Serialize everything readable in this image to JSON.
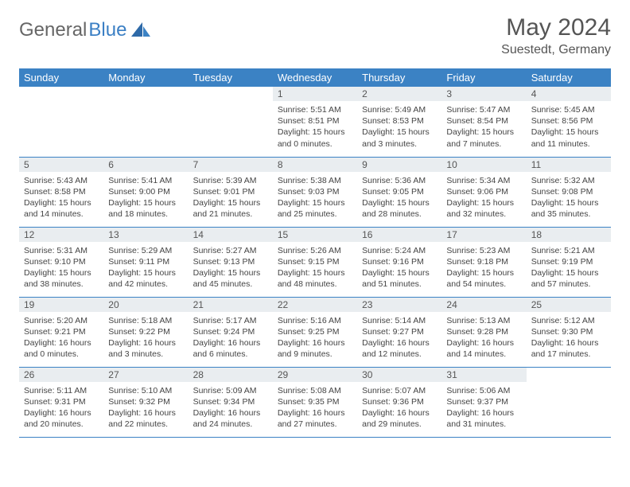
{
  "brand": {
    "part1": "General",
    "part2": "Blue"
  },
  "title": "May 2024",
  "location": "Suestedt, Germany",
  "colors": {
    "header_bg": "#3b82c4",
    "header_text": "#ffffff",
    "daynum_bg": "#e9edf0",
    "border": "#3b82c4",
    "text": "#444444",
    "logo_gray": "#666666",
    "logo_blue": "#3b7fc4",
    "page_bg": "#ffffff"
  },
  "weekdays": [
    "Sunday",
    "Monday",
    "Tuesday",
    "Wednesday",
    "Thursday",
    "Friday",
    "Saturday"
  ],
  "weeks": [
    [
      null,
      null,
      null,
      {
        "n": "1",
        "sr": "5:51 AM",
        "ss": "8:51 PM",
        "dl": "15 hours and 0 minutes."
      },
      {
        "n": "2",
        "sr": "5:49 AM",
        "ss": "8:53 PM",
        "dl": "15 hours and 3 minutes."
      },
      {
        "n": "3",
        "sr": "5:47 AM",
        "ss": "8:54 PM",
        "dl": "15 hours and 7 minutes."
      },
      {
        "n": "4",
        "sr": "5:45 AM",
        "ss": "8:56 PM",
        "dl": "15 hours and 11 minutes."
      }
    ],
    [
      {
        "n": "5",
        "sr": "5:43 AM",
        "ss": "8:58 PM",
        "dl": "15 hours and 14 minutes."
      },
      {
        "n": "6",
        "sr": "5:41 AM",
        "ss": "9:00 PM",
        "dl": "15 hours and 18 minutes."
      },
      {
        "n": "7",
        "sr": "5:39 AM",
        "ss": "9:01 PM",
        "dl": "15 hours and 21 minutes."
      },
      {
        "n": "8",
        "sr": "5:38 AM",
        "ss": "9:03 PM",
        "dl": "15 hours and 25 minutes."
      },
      {
        "n": "9",
        "sr": "5:36 AM",
        "ss": "9:05 PM",
        "dl": "15 hours and 28 minutes."
      },
      {
        "n": "10",
        "sr": "5:34 AM",
        "ss": "9:06 PM",
        "dl": "15 hours and 32 minutes."
      },
      {
        "n": "11",
        "sr": "5:32 AM",
        "ss": "9:08 PM",
        "dl": "15 hours and 35 minutes."
      }
    ],
    [
      {
        "n": "12",
        "sr": "5:31 AM",
        "ss": "9:10 PM",
        "dl": "15 hours and 38 minutes."
      },
      {
        "n": "13",
        "sr": "5:29 AM",
        "ss": "9:11 PM",
        "dl": "15 hours and 42 minutes."
      },
      {
        "n": "14",
        "sr": "5:27 AM",
        "ss": "9:13 PM",
        "dl": "15 hours and 45 minutes."
      },
      {
        "n": "15",
        "sr": "5:26 AM",
        "ss": "9:15 PM",
        "dl": "15 hours and 48 minutes."
      },
      {
        "n": "16",
        "sr": "5:24 AM",
        "ss": "9:16 PM",
        "dl": "15 hours and 51 minutes."
      },
      {
        "n": "17",
        "sr": "5:23 AM",
        "ss": "9:18 PM",
        "dl": "15 hours and 54 minutes."
      },
      {
        "n": "18",
        "sr": "5:21 AM",
        "ss": "9:19 PM",
        "dl": "15 hours and 57 minutes."
      }
    ],
    [
      {
        "n": "19",
        "sr": "5:20 AM",
        "ss": "9:21 PM",
        "dl": "16 hours and 0 minutes."
      },
      {
        "n": "20",
        "sr": "5:18 AM",
        "ss": "9:22 PM",
        "dl": "16 hours and 3 minutes."
      },
      {
        "n": "21",
        "sr": "5:17 AM",
        "ss": "9:24 PM",
        "dl": "16 hours and 6 minutes."
      },
      {
        "n": "22",
        "sr": "5:16 AM",
        "ss": "9:25 PM",
        "dl": "16 hours and 9 minutes."
      },
      {
        "n": "23",
        "sr": "5:14 AM",
        "ss": "9:27 PM",
        "dl": "16 hours and 12 minutes."
      },
      {
        "n": "24",
        "sr": "5:13 AM",
        "ss": "9:28 PM",
        "dl": "16 hours and 14 minutes."
      },
      {
        "n": "25",
        "sr": "5:12 AM",
        "ss": "9:30 PM",
        "dl": "16 hours and 17 minutes."
      }
    ],
    [
      {
        "n": "26",
        "sr": "5:11 AM",
        "ss": "9:31 PM",
        "dl": "16 hours and 20 minutes."
      },
      {
        "n": "27",
        "sr": "5:10 AM",
        "ss": "9:32 PM",
        "dl": "16 hours and 22 minutes."
      },
      {
        "n": "28",
        "sr": "5:09 AM",
        "ss": "9:34 PM",
        "dl": "16 hours and 24 minutes."
      },
      {
        "n": "29",
        "sr": "5:08 AM",
        "ss": "9:35 PM",
        "dl": "16 hours and 27 minutes."
      },
      {
        "n": "30",
        "sr": "5:07 AM",
        "ss": "9:36 PM",
        "dl": "16 hours and 29 minutes."
      },
      {
        "n": "31",
        "sr": "5:06 AM",
        "ss": "9:37 PM",
        "dl": "16 hours and 31 minutes."
      },
      null
    ]
  ],
  "labels": {
    "sunrise": "Sunrise:",
    "sunset": "Sunset:",
    "daylight": "Daylight:"
  }
}
